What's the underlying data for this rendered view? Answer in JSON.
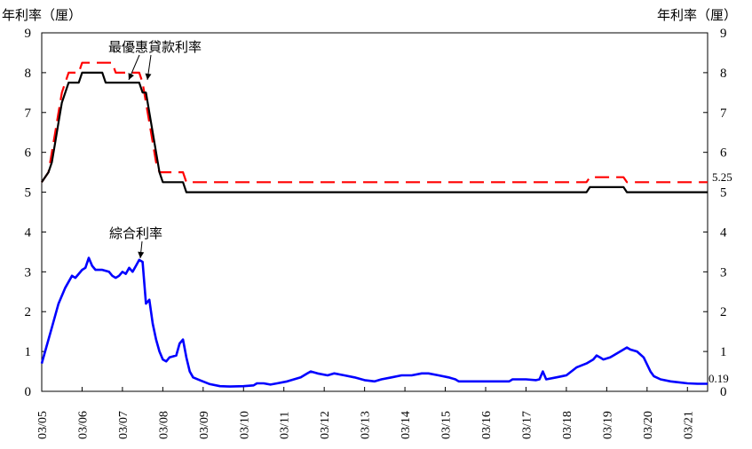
{
  "chart_data": {
    "type": "line",
    "y_unit_left": "年利率（厘）",
    "y_unit_right": "年利率（厘）",
    "ylim": [
      0,
      9
    ],
    "y_ticks": [
      "0",
      "1",
      "2",
      "3",
      "4",
      "5",
      "6",
      "7",
      "8",
      "9"
    ],
    "x_tick_labels": [
      "03/05",
      "03/06",
      "03/07",
      "03/08",
      "03/09",
      "03/10",
      "03/11",
      "03/12",
      "03/13",
      "03/14",
      "03/15",
      "03/16",
      "03/17",
      "03/18",
      "03/19",
      "03/20",
      "03/21"
    ],
    "x_start": "2005-03",
    "x_end": "2021-09",
    "annotations": {
      "prime": "最優惠貸款利率",
      "composite": "綜合利率"
    },
    "end_labels": {
      "red": "5.25",
      "composite": "0.19"
    },
    "series": [
      {
        "key": "prime_red",
        "color": "#ff0000",
        "style": "dashed",
        "points": [
          [
            "2005-03",
            5.25
          ],
          [
            "2005-05",
            5.5
          ],
          [
            "2005-06",
            6.0
          ],
          [
            "2005-07",
            6.5
          ],
          [
            "2005-08",
            7.0
          ],
          [
            "2005-09",
            7.5
          ],
          [
            "2005-11",
            8.0
          ],
          [
            "2006-02",
            8.0
          ],
          [
            "2006-03",
            8.25
          ],
          [
            "2006-12",
            8.25
          ],
          [
            "2007-01",
            8.0
          ],
          [
            "2007-08",
            8.0
          ],
          [
            "2007-09",
            7.75
          ],
          [
            "2007-10",
            7.25
          ],
          [
            "2007-11",
            6.75
          ],
          [
            "2007-12",
            6.25
          ],
          [
            "2008-01",
            5.75
          ],
          [
            "2008-02",
            5.5
          ],
          [
            "2008-09",
            5.5
          ],
          [
            "2008-10",
            5.25
          ],
          [
            "2018-09",
            5.25
          ],
          [
            "2018-10",
            5.375
          ],
          [
            "2019-08",
            5.375
          ],
          [
            "2019-09",
            5.25
          ],
          [
            "2021-09",
            5.25
          ]
        ]
      },
      {
        "key": "prime_black",
        "color": "#000000",
        "style": "solid",
        "points": [
          [
            "2005-03",
            5.25
          ],
          [
            "2005-05",
            5.5
          ],
          [
            "2005-06",
            5.75
          ],
          [
            "2005-07",
            6.25
          ],
          [
            "2005-08",
            6.75
          ],
          [
            "2005-09",
            7.25
          ],
          [
            "2005-11",
            7.75
          ],
          [
            "2006-02",
            7.75
          ],
          [
            "2006-03",
            8.0
          ],
          [
            "2006-09",
            8.0
          ],
          [
            "2006-10",
            7.75
          ],
          [
            "2007-07",
            7.75
          ],
          [
            "2007-08",
            7.75
          ],
          [
            "2007-09",
            7.5
          ],
          [
            "2007-10",
            7.5
          ],
          [
            "2007-11",
            7.0
          ],
          [
            "2007-12",
            6.5
          ],
          [
            "2008-01",
            6.0
          ],
          [
            "2008-02",
            5.5
          ],
          [
            "2008-03",
            5.25
          ],
          [
            "2008-09",
            5.25
          ],
          [
            "2008-10",
            5.0
          ],
          [
            "2018-09",
            5.0
          ],
          [
            "2018-10",
            5.125
          ],
          [
            "2019-08",
            5.125
          ],
          [
            "2019-09",
            5.0
          ],
          [
            "2021-09",
            5.0
          ]
        ]
      },
      {
        "key": "composite",
        "color": "#0000ff",
        "style": "solid",
        "points": [
          [
            "2005-03",
            0.7
          ],
          [
            "2005-04",
            1.0
          ],
          [
            "2005-06",
            1.6
          ],
          [
            "2005-08",
            2.2
          ],
          [
            "2005-10",
            2.6
          ],
          [
            "2005-12",
            2.9
          ],
          [
            "2006-01",
            2.85
          ],
          [
            "2006-02",
            2.95
          ],
          [
            "2006-03",
            3.05
          ],
          [
            "2006-04",
            3.1
          ],
          [
            "2006-05",
            3.35
          ],
          [
            "2006-06",
            3.15
          ],
          [
            "2006-07",
            3.05
          ],
          [
            "2006-09",
            3.05
          ],
          [
            "2006-11",
            3.0
          ],
          [
            "2006-12",
            2.9
          ],
          [
            "2007-01",
            2.85
          ],
          [
            "2007-02",
            2.9
          ],
          [
            "2007-03",
            3.0
          ],
          [
            "2007-04",
            2.95
          ],
          [
            "2007-05",
            3.1
          ],
          [
            "2007-06",
            3.0
          ],
          [
            "2007-07",
            3.15
          ],
          [
            "2007-08",
            3.3
          ],
          [
            "2007-09",
            3.25
          ],
          [
            "2007-10",
            2.2
          ],
          [
            "2007-11",
            2.3
          ],
          [
            "2007-12",
            1.7
          ],
          [
            "2008-01",
            1.3
          ],
          [
            "2008-02",
            1.0
          ],
          [
            "2008-03",
            0.8
          ],
          [
            "2008-04",
            0.75
          ],
          [
            "2008-05",
            0.85
          ],
          [
            "2008-07",
            0.9
          ],
          [
            "2008-08",
            1.2
          ],
          [
            "2008-09",
            1.3
          ],
          [
            "2008-10",
            0.85
          ],
          [
            "2008-11",
            0.5
          ],
          [
            "2008-12",
            0.35
          ],
          [
            "2009-02",
            0.28
          ],
          [
            "2009-05",
            0.18
          ],
          [
            "2009-08",
            0.13
          ],
          [
            "2009-11",
            0.12
          ],
          [
            "2010-03",
            0.13
          ],
          [
            "2010-06",
            0.15
          ],
          [
            "2010-07",
            0.2
          ],
          [
            "2010-09",
            0.2
          ],
          [
            "2010-11",
            0.17
          ],
          [
            "2011-01",
            0.2
          ],
          [
            "2011-04",
            0.25
          ],
          [
            "2011-06",
            0.3
          ],
          [
            "2011-08",
            0.35
          ],
          [
            "2011-10",
            0.45
          ],
          [
            "2011-11",
            0.5
          ],
          [
            "2012-01",
            0.45
          ],
          [
            "2012-04",
            0.4
          ],
          [
            "2012-06",
            0.45
          ],
          [
            "2012-09",
            0.4
          ],
          [
            "2012-12",
            0.35
          ],
          [
            "2013-03",
            0.28
          ],
          [
            "2013-06",
            0.25
          ],
          [
            "2013-08",
            0.3
          ],
          [
            "2013-11",
            0.35
          ],
          [
            "2014-02",
            0.4
          ],
          [
            "2014-05",
            0.4
          ],
          [
            "2014-08",
            0.45
          ],
          [
            "2014-10",
            0.45
          ],
          [
            "2015-01",
            0.4
          ],
          [
            "2015-04",
            0.35
          ],
          [
            "2015-06",
            0.3
          ],
          [
            "2015-07",
            0.25
          ],
          [
            "2015-12",
            0.25
          ],
          [
            "2016-06",
            0.25
          ],
          [
            "2016-10",
            0.25
          ],
          [
            "2016-11",
            0.3
          ],
          [
            "2017-03",
            0.3
          ],
          [
            "2017-06",
            0.28
          ],
          [
            "2017-07",
            0.3
          ],
          [
            "2017-08",
            0.5
          ],
          [
            "2017-09",
            0.3
          ],
          [
            "2017-12",
            0.35
          ],
          [
            "2018-03",
            0.4
          ],
          [
            "2018-06",
            0.6
          ],
          [
            "2018-09",
            0.7
          ],
          [
            "2018-11",
            0.8
          ],
          [
            "2018-12",
            0.9
          ],
          [
            "2019-01",
            0.85
          ],
          [
            "2019-02",
            0.8
          ],
          [
            "2019-04",
            0.85
          ],
          [
            "2019-05",
            0.9
          ],
          [
            "2019-07",
            1.0
          ],
          [
            "2019-08",
            1.05
          ],
          [
            "2019-09",
            1.1
          ],
          [
            "2019-10",
            1.05
          ],
          [
            "2019-12",
            1.0
          ],
          [
            "2020-02",
            0.85
          ],
          [
            "2020-04",
            0.5
          ],
          [
            "2020-05",
            0.38
          ],
          [
            "2020-07",
            0.3
          ],
          [
            "2020-10",
            0.25
          ],
          [
            "2020-12",
            0.23
          ],
          [
            "2021-03",
            0.2
          ],
          [
            "2021-06",
            0.19
          ],
          [
            "2021-09",
            0.19
          ]
        ]
      }
    ]
  }
}
